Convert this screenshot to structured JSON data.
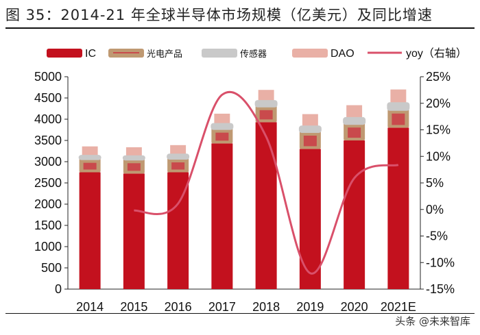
{
  "title": "图 35：2014-21 年全球半导体市场规模（亿美元）及同比增速",
  "watermark": "头条 @未来智库",
  "colors": {
    "IC": "#c3111e",
    "opto": "#bf9972",
    "opto_inner": "#c94a4c",
    "sensor": "#c9c9c9",
    "DAO": "#e9b0a6",
    "yoy": "#d9506a"
  },
  "chart_data": {
    "type": "bar",
    "stacked": true,
    "categories": [
      "2014",
      "2015",
      "2016",
      "2017",
      "2018",
      "2019",
      "2020",
      "2021E"
    ],
    "series": [
      {
        "name": "IC",
        "values": [
          2750,
          2720,
          2750,
          3430,
          3930,
          3300,
          3500,
          3800
        ]
      },
      {
        "name": "光电产品",
        "values": [
          320,
          340,
          330,
          350,
          380,
          410,
          400,
          430
        ]
      },
      {
        "name": "传感器",
        "values": [
          90,
          90,
          110,
          130,
          140,
          140,
          150,
          170
        ]
      },
      {
        "name": "DAO",
        "values": [
          200,
          190,
          200,
          220,
          240,
          270,
          280,
          300
        ]
      }
    ],
    "line_series": {
      "name": "yoy（右轴）",
      "x": [
        "2015",
        "2016",
        "2017",
        "2018",
        "2019",
        "2020",
        "2021E"
      ],
      "values": [
        -0.2,
        1.1,
        21.6,
        13.7,
        -12.0,
        5.9,
        8.4
      ]
    },
    "ylim": [
      0,
      5000
    ],
    "yticks": [
      "0",
      "500",
      "1000",
      "1500",
      "2000",
      "2500",
      "3000",
      "3500",
      "4000",
      "4500",
      "5000"
    ],
    "y2lim": [
      -15,
      25
    ],
    "y2ticks": [
      "-15%",
      "-10%",
      "-5%",
      "0%",
      "5%",
      "10%",
      "15%",
      "20%",
      "25%"
    ],
    "legend_position": "top",
    "grid": false
  }
}
